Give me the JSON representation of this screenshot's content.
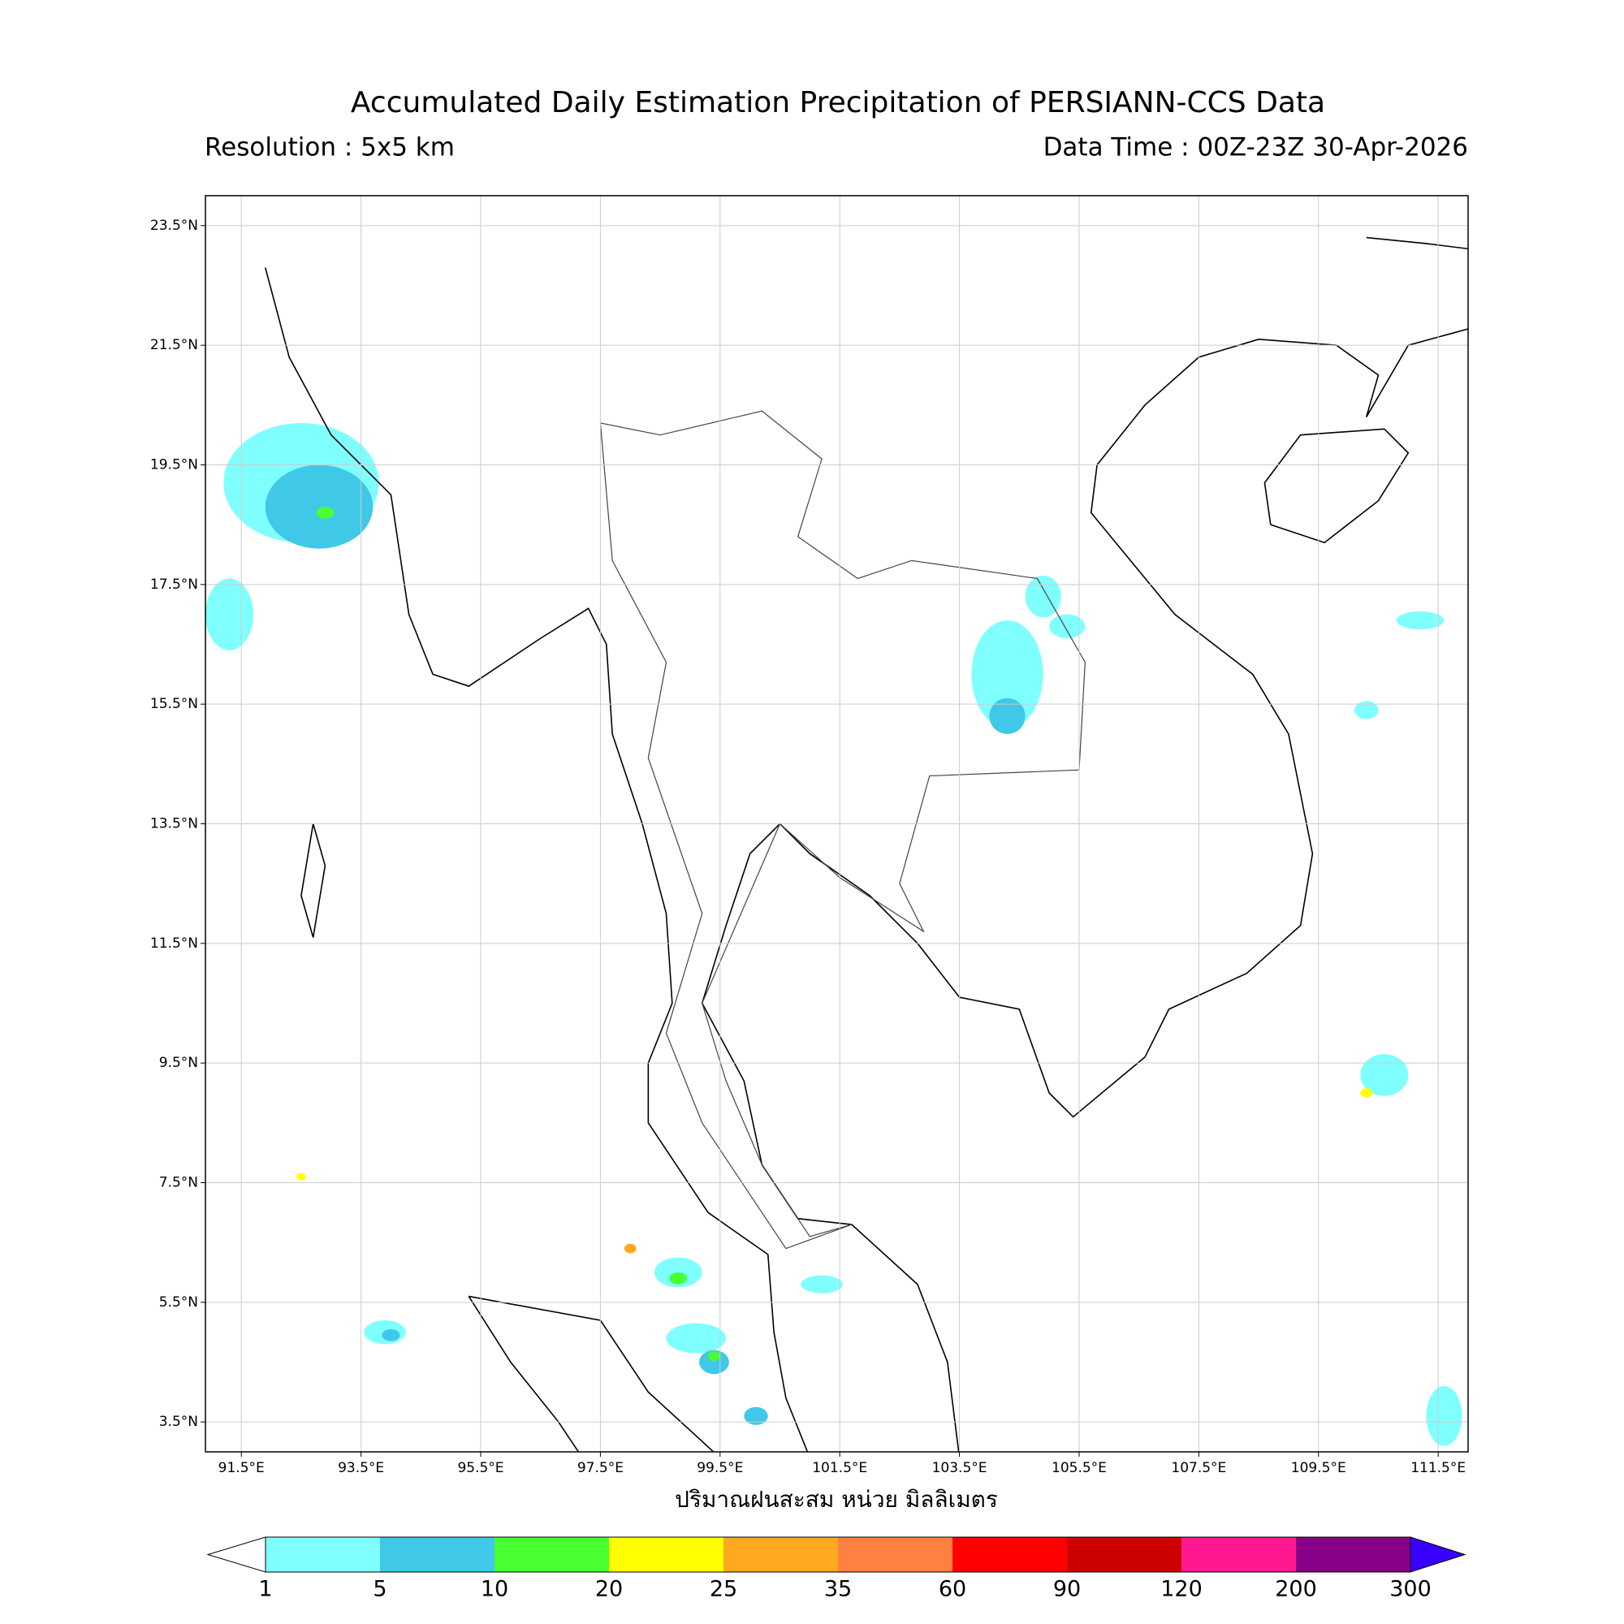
{
  "title": "Accumulated Daily Estimation Precipitation of PERSIANN-CCS Data",
  "resolution": "Resolution : 5x5 km",
  "data_time": "Data Time : 00Z-23Z 30-Apr-2026",
  "map": {
    "xlim": [
      90.9,
      112.0
    ],
    "ylim": [
      3.0,
      24.0
    ],
    "xticks": [
      {
        "value": 91.5,
        "label": "91.5°E"
      },
      {
        "value": 93.5,
        "label": "93.5°E"
      },
      {
        "value": 95.5,
        "label": "95.5°E"
      },
      {
        "value": 97.5,
        "label": "97.5°E"
      },
      {
        "value": 99.5,
        "label": "99.5°E"
      },
      {
        "value": 101.5,
        "label": "101.5°E"
      },
      {
        "value": 103.5,
        "label": "103.5°E"
      },
      {
        "value": 105.5,
        "label": "105.5°E"
      },
      {
        "value": 107.5,
        "label": "107.5°E"
      },
      {
        "value": 109.5,
        "label": "109.5°E"
      },
      {
        "value": 111.5,
        "label": "111.5°E"
      }
    ],
    "yticks": [
      {
        "value": 3.5,
        "label": "3.5°N"
      },
      {
        "value": 5.5,
        "label": "5.5°N"
      },
      {
        "value": 7.5,
        "label": "7.5°N"
      },
      {
        "value": 9.5,
        "label": "9.5°N"
      },
      {
        "value": 11.5,
        "label": "11.5°N"
      },
      {
        "value": 13.5,
        "label": "13.5°N"
      },
      {
        "value": 15.5,
        "label": "15.5°N"
      },
      {
        "value": 17.5,
        "label": "17.5°N"
      },
      {
        "value": 19.5,
        "label": "19.5°N"
      },
      {
        "value": 21.5,
        "label": "21.5°N"
      },
      {
        "value": 23.5,
        "label": "23.5°N"
      }
    ],
    "grid": true
  },
  "xlabel": "ปริมาณฝนสะสม หน่วย มิลลิเมตร",
  "colorbar": {
    "levels": [
      1,
      5,
      10,
      20,
      25,
      35,
      60,
      90,
      120,
      200,
      300
    ],
    "colors": [
      "#80ffff",
      "#40c8e8",
      "#48ff30",
      "#ffff00",
      "#ffa820",
      "#ff8040",
      "#ff0000",
      "#cc0000",
      "#ff1890",
      "#880088"
    ],
    "under_color": "#ffffff",
    "over_color": "#3a00ff"
  }
}
